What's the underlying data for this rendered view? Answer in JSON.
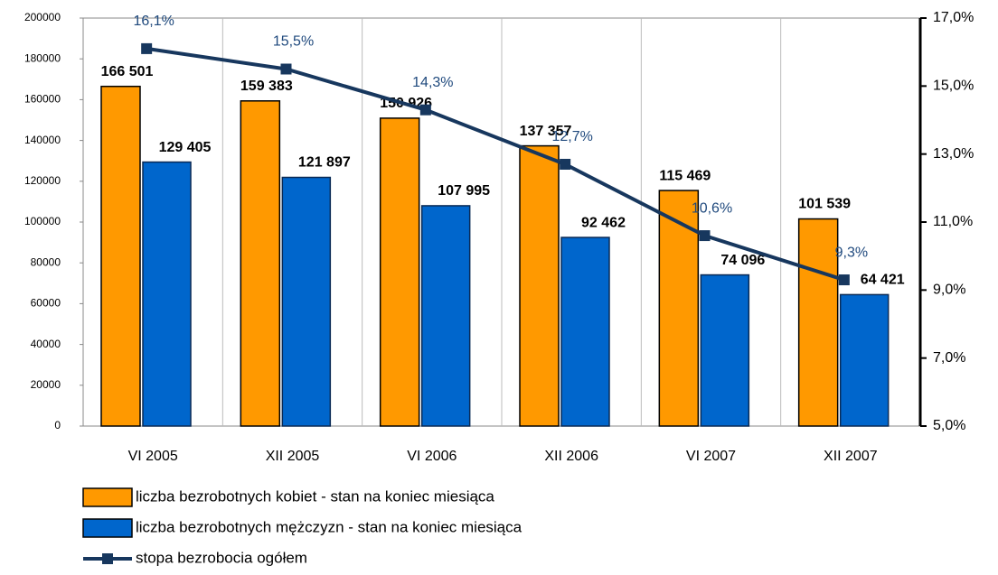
{
  "chart_data": {
    "type": "bar",
    "categories": [
      "VI 2005",
      "XII 2005",
      "VI 2006",
      "XII 2006",
      "VI 2007",
      "XII 2007"
    ],
    "series": [
      {
        "name": "liczba bezrobotnych kobiet - stan na koniec miesiąca",
        "color": "#FF9900",
        "values": [
          166501,
          159383,
          150926,
          137357,
          115469,
          101539
        ],
        "value_labels": [
          "166 501",
          "159 383",
          "150 926",
          "137 357",
          "115 469",
          "101 539"
        ]
      },
      {
        "name": "liczba bezrobotnych mężczyzn - stan na koniec miesiąca",
        "color": "#0066CC",
        "values": [
          129405,
          121897,
          107995,
          92462,
          74096,
          64421
        ],
        "value_labels": [
          "129 405",
          "121 897",
          "107 995",
          "92 462",
          "74 096",
          "64 421"
        ]
      },
      {
        "name": "stopa bezrobocia ogółem",
        "type": "line",
        "axis": "y2",
        "color": "#17375E",
        "values": [
          16.1,
          15.5,
          14.3,
          12.7,
          10.6,
          9.3
        ],
        "value_labels": [
          "16,1%",
          "15,5%",
          "14,3%",
          "12,7%",
          "10,6%",
          "9,3%"
        ]
      }
    ],
    "ylim": [
      0,
      200000
    ],
    "yticks": [
      0,
      20000,
      40000,
      60000,
      80000,
      100000,
      120000,
      140000,
      160000,
      180000,
      200000
    ],
    "y2lim": [
      5,
      17
    ],
    "y2ticks": [
      {
        "value": 5,
        "label": "5,0%"
      },
      {
        "value": 7,
        "label": "7,0%"
      },
      {
        "value": 9,
        "label": "9,0%"
      },
      {
        "value": 11,
        "label": "11,0%"
      },
      {
        "value": 13,
        "label": "13,0%"
      },
      {
        "value": 15,
        "label": "15,0%"
      },
      {
        "value": 17,
        "label": "17,0%"
      }
    ]
  }
}
